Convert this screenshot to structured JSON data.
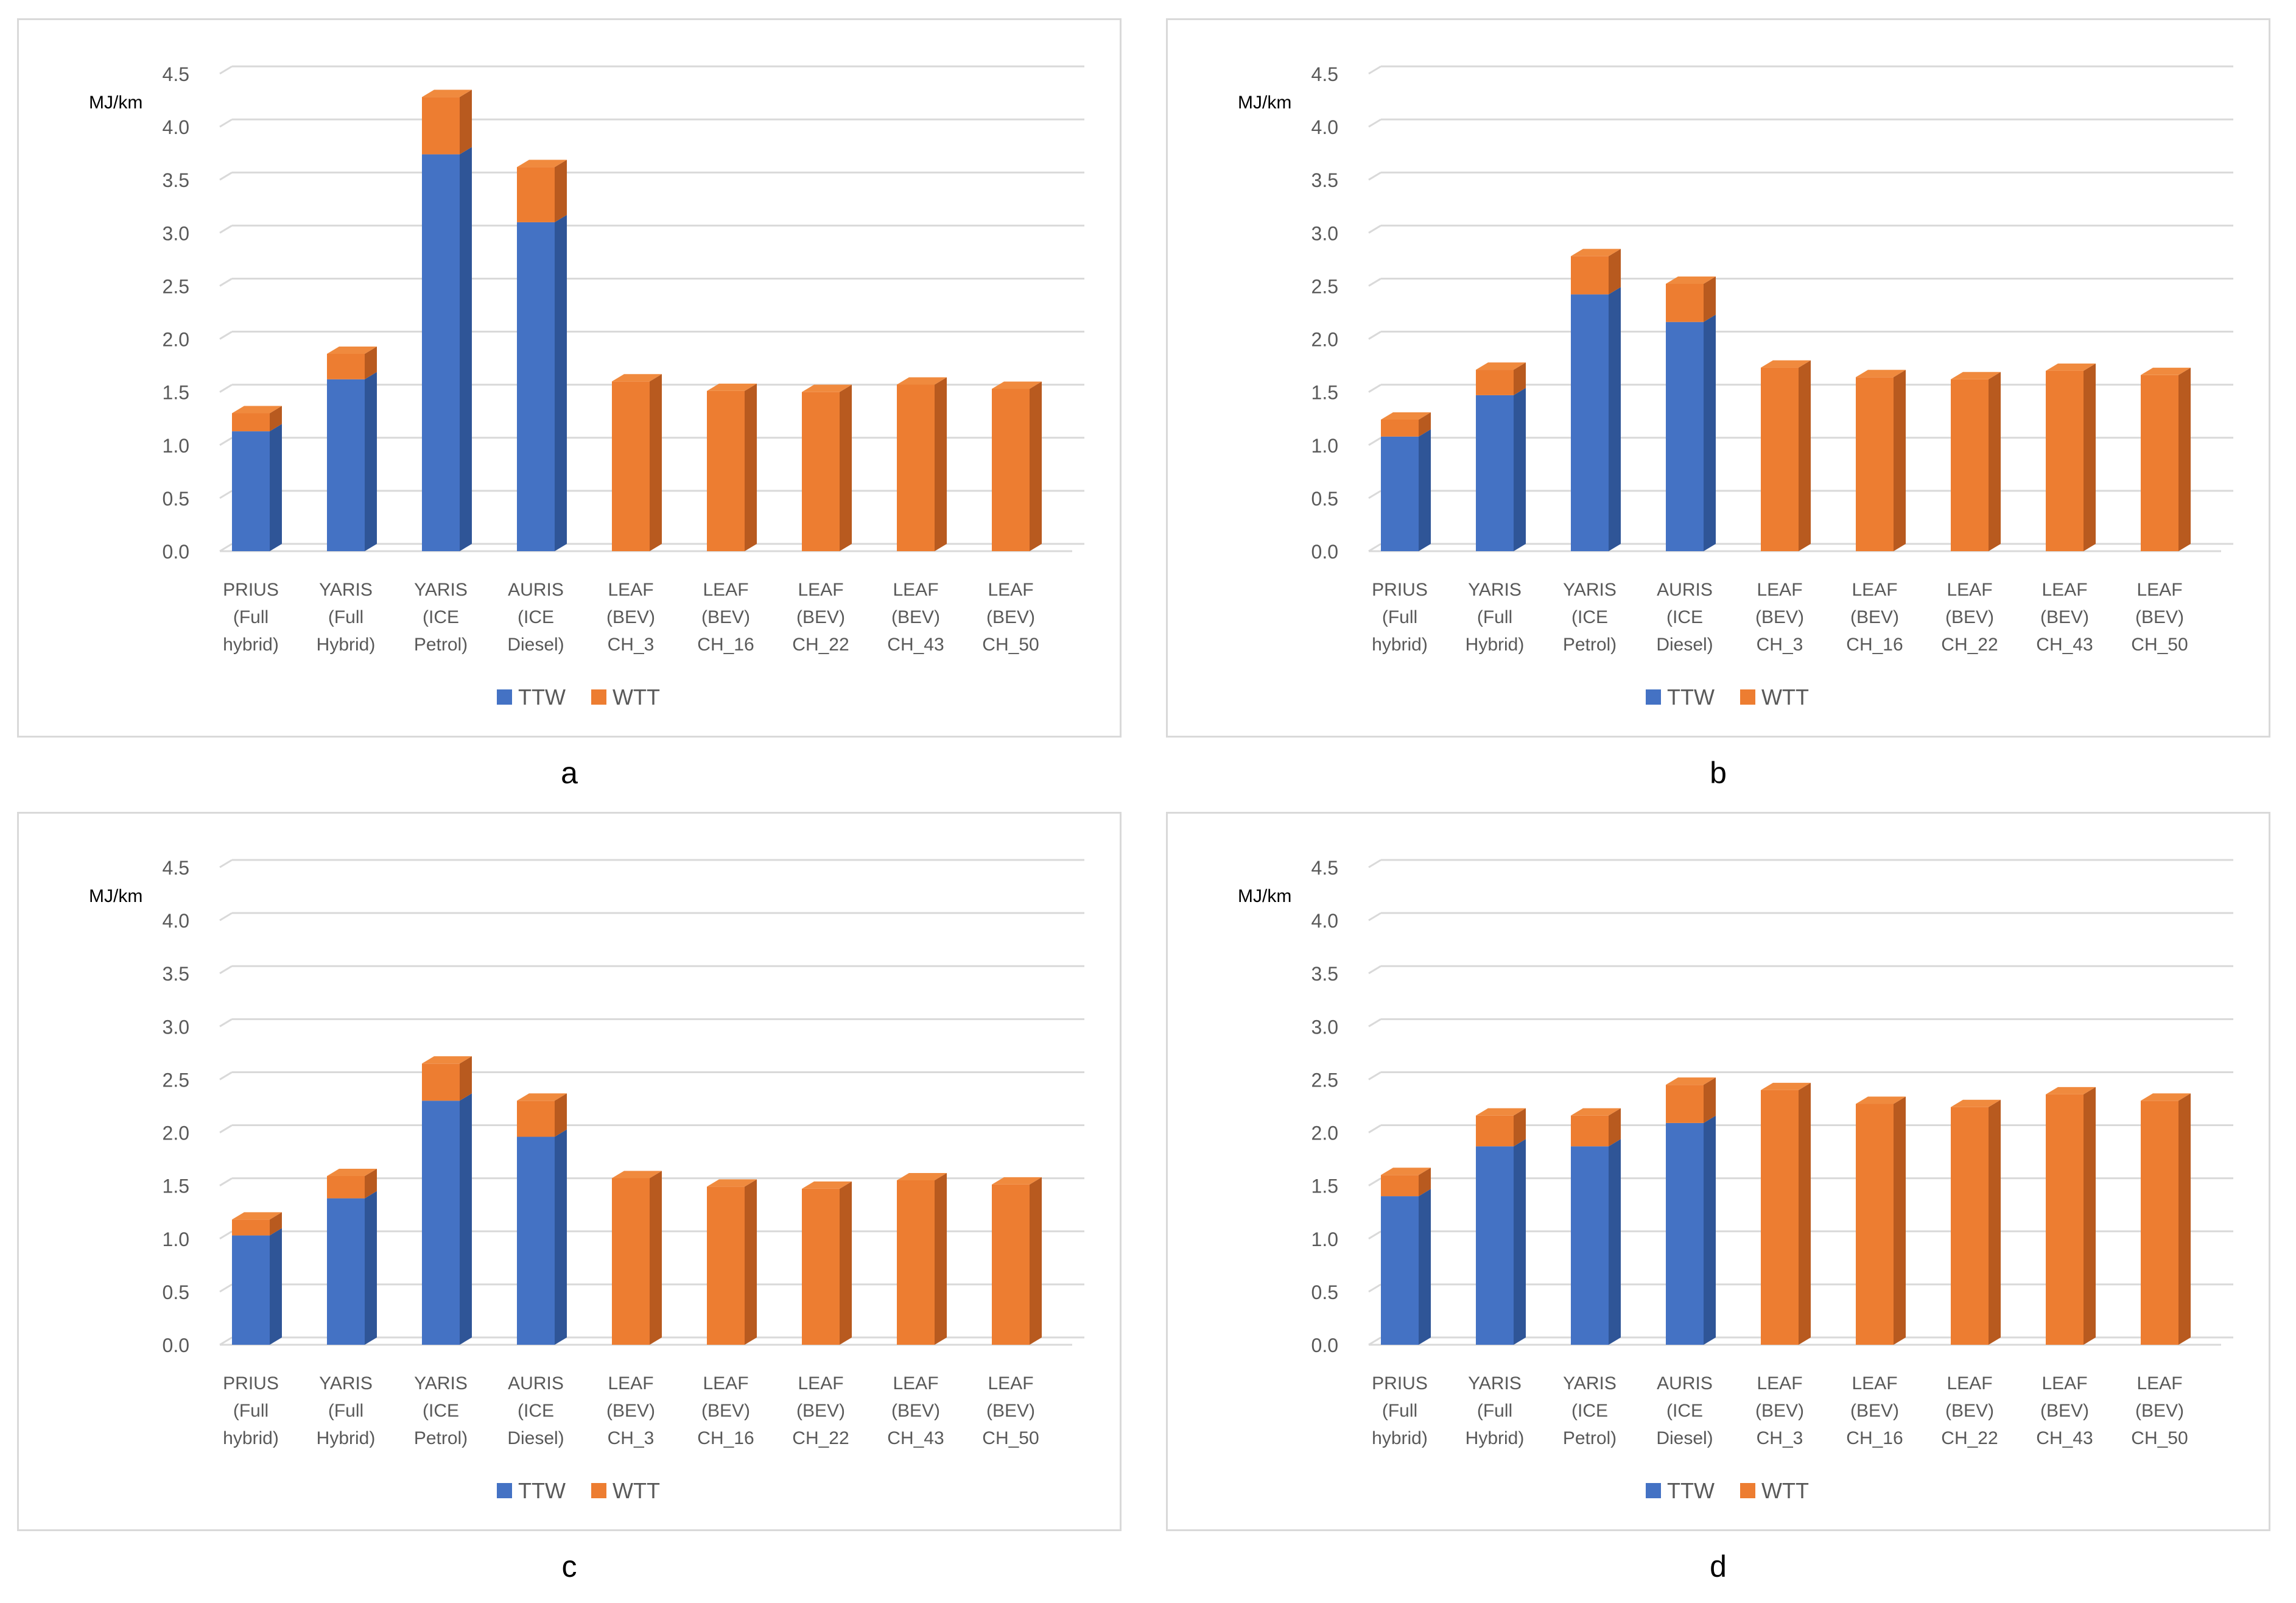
{
  "figure": {
    "colors": {
      "ttw": "#4472C4",
      "ttw_side": "#2F5597",
      "ttw_top": "#5B86D0",
      "wtt": "#ED7D31",
      "wtt_side": "#B85A1F",
      "wtt_top": "#F08A3E",
      "grid": "#D9D9D9",
      "axis_text": "#595959",
      "border": "#D9D9D9"
    }
  },
  "chart_data": [
    {
      "panel_label": "a",
      "type": "bar",
      "stacked": true,
      "ylabel": "MJ/km",
      "ylim": [
        0,
        4.5
      ],
      "yticks": [
        "0.0",
        "0.5",
        "1.0",
        "1.5",
        "2.0",
        "2.5",
        "3.0",
        "3.5",
        "4.0",
        "4.5"
      ],
      "categories": [
        [
          "PRIUS",
          "(Full",
          "hybrid)"
        ],
        [
          "YARIS",
          "(Full",
          "Hybrid)"
        ],
        [
          "YARIS",
          "(ICE",
          "Petrol)"
        ],
        [
          "AURIS",
          "(ICE",
          "Diesel)"
        ],
        [
          "LEAF",
          "(BEV)",
          "CH_3"
        ],
        [
          "LEAF",
          "(BEV)",
          "CH_16"
        ],
        [
          "LEAF",
          "(BEV)",
          "CH_22"
        ],
        [
          "LEAF",
          "(BEV)",
          "CH_43"
        ],
        [
          "LEAF",
          "(BEV)",
          "CH_50"
        ]
      ],
      "series": [
        {
          "name": "TTW",
          "values": [
            1.13,
            1.62,
            3.74,
            3.1,
            0,
            0,
            0,
            0,
            0
          ]
        },
        {
          "name": "WTT",
          "values": [
            0.17,
            0.24,
            0.54,
            0.52,
            1.6,
            1.51,
            1.5,
            1.57,
            1.53
          ]
        }
      ],
      "legend": [
        "TTW",
        "WTT"
      ],
      "legend_position": "bottom"
    },
    {
      "panel_label": "b",
      "type": "bar",
      "stacked": true,
      "ylabel": "MJ/km",
      "ylim": [
        0,
        4.5
      ],
      "yticks": [
        "0.0",
        "0.5",
        "1.0",
        "1.5",
        "2.0",
        "2.5",
        "3.0",
        "3.5",
        "4.0",
        "4.5"
      ],
      "categories": [
        [
          "PRIUS",
          "(Full",
          "hybrid)"
        ],
        [
          "YARIS",
          "(Full",
          "Hybrid)"
        ],
        [
          "YARIS",
          "(ICE",
          "Petrol)"
        ],
        [
          "AURIS",
          "(ICE",
          "Diesel)"
        ],
        [
          "LEAF",
          "(BEV)",
          "CH_3"
        ],
        [
          "LEAF",
          "(BEV)",
          "CH_16"
        ],
        [
          "LEAF",
          "(BEV)",
          "CH_22"
        ],
        [
          "LEAF",
          "(BEV)",
          "CH_43"
        ],
        [
          "LEAF",
          "(BEV)",
          "CH_50"
        ]
      ],
      "series": [
        {
          "name": "TTW",
          "values": [
            1.08,
            1.47,
            2.42,
            2.16,
            0,
            0,
            0,
            0,
            0
          ]
        },
        {
          "name": "WTT",
          "values": [
            0.16,
            0.24,
            0.36,
            0.36,
            1.73,
            1.64,
            1.62,
            1.7,
            1.66
          ]
        }
      ],
      "legend": [
        "TTW",
        "WTT"
      ],
      "legend_position": "bottom"
    },
    {
      "panel_label": "c",
      "type": "bar",
      "stacked": true,
      "ylabel": "MJ/km",
      "ylim": [
        0,
        4.5
      ],
      "yticks": [
        "0.0",
        "0.5",
        "1.0",
        "1.5",
        "2.0",
        "2.5",
        "3.0",
        "3.5",
        "4.0",
        "4.5"
      ],
      "categories": [
        [
          "PRIUS",
          "(Full",
          "hybrid)"
        ],
        [
          "YARIS",
          "(Full",
          "Hybrid)"
        ],
        [
          "YARIS",
          "(ICE",
          "Petrol)"
        ],
        [
          "AURIS",
          "(ICE",
          "Diesel)"
        ],
        [
          "LEAF",
          "(BEV)",
          "CH_3"
        ],
        [
          "LEAF",
          "(BEV)",
          "CH_16"
        ],
        [
          "LEAF",
          "(BEV)",
          "CH_22"
        ],
        [
          "LEAF",
          "(BEV)",
          "CH_43"
        ],
        [
          "LEAF",
          "(BEV)",
          "CH_50"
        ]
      ],
      "series": [
        {
          "name": "TTW",
          "values": [
            1.03,
            1.38,
            2.3,
            1.96,
            0,
            0,
            0,
            0,
            0
          ]
        },
        {
          "name": "WTT",
          "values": [
            0.15,
            0.21,
            0.35,
            0.34,
            1.57,
            1.49,
            1.47,
            1.55,
            1.51
          ]
        }
      ],
      "legend": [
        "TTW",
        "WTT"
      ],
      "legend_position": "bottom"
    },
    {
      "panel_label": "d",
      "type": "bar",
      "stacked": true,
      "ylabel": "MJ/km",
      "ylim": [
        0,
        4.5
      ],
      "yticks": [
        "0.0",
        "0.5",
        "1.0",
        "1.5",
        "2.0",
        "2.5",
        "3.0",
        "3.5",
        "4.0",
        "4.5"
      ],
      "categories": [
        [
          "PRIUS",
          "(Full",
          "hybrid)"
        ],
        [
          "YARIS",
          "(Full",
          "Hybrid)"
        ],
        [
          "YARIS",
          "(ICE",
          "Petrol)"
        ],
        [
          "AURIS",
          "(ICE",
          "Diesel)"
        ],
        [
          "LEAF",
          "(BEV)",
          "CH_3"
        ],
        [
          "LEAF",
          "(BEV)",
          "CH_16"
        ],
        [
          "LEAF",
          "(BEV)",
          "CH_22"
        ],
        [
          "LEAF",
          "(BEV)",
          "CH_43"
        ],
        [
          "LEAF",
          "(BEV)",
          "CH_50"
        ]
      ],
      "series": [
        {
          "name": "TTW",
          "values": [
            1.4,
            1.87,
            1.87,
            2.09,
            0,
            0,
            0,
            0,
            0
          ]
        },
        {
          "name": "WTT",
          "values": [
            0.2,
            0.29,
            0.29,
            0.36,
            2.4,
            2.27,
            2.24,
            2.36,
            2.3
          ]
        }
      ],
      "legend": [
        "TTW",
        "WTT"
      ],
      "legend_position": "bottom"
    }
  ]
}
